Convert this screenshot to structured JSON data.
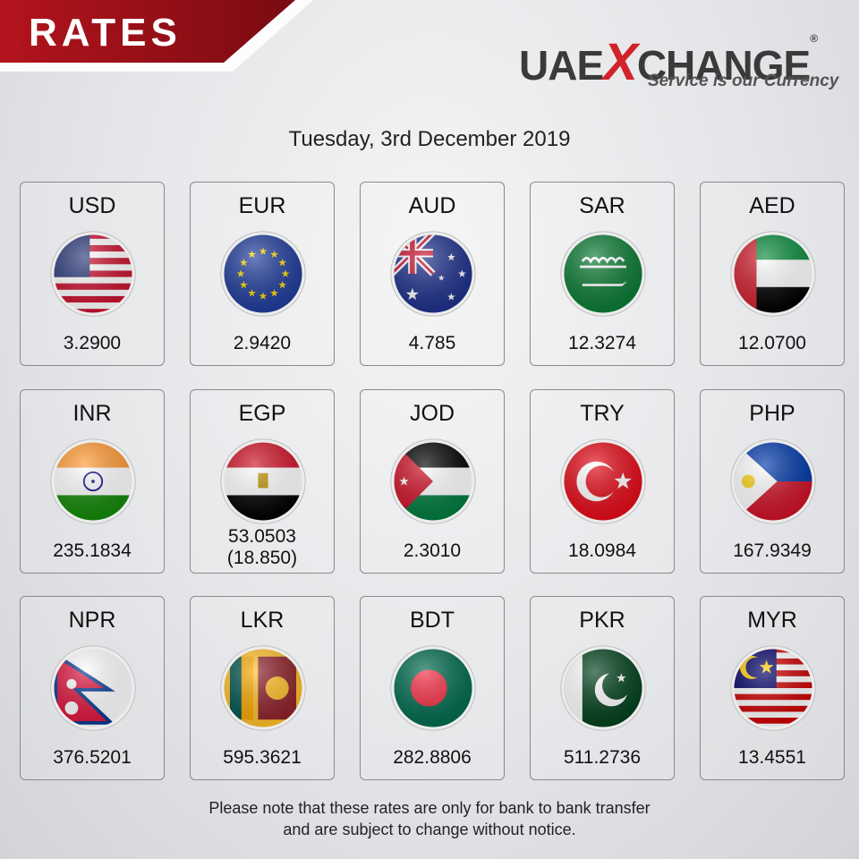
{
  "header": {
    "title": "RATES"
  },
  "brand": {
    "name_part1": "UAE",
    "name_part2": "X",
    "name_part3": "CHANGE",
    "registered": "®",
    "tagline": "Service is our Currency"
  },
  "date": "Tuesday, 3rd December 2019",
  "rates": [
    {
      "code": "USD",
      "rate": "3.2900"
    },
    {
      "code": "EUR",
      "rate": "2.9420"
    },
    {
      "code": "AUD",
      "rate": "4.785"
    },
    {
      "code": "SAR",
      "rate": "12.3274"
    },
    {
      "code": "AED",
      "rate": "12.0700"
    },
    {
      "code": "INR",
      "rate": "235.1834"
    },
    {
      "code": "EGP",
      "rate": "53.0503",
      "rate_note": "(18.850)"
    },
    {
      "code": "JOD",
      "rate": "2.3010"
    },
    {
      "code": "TRY",
      "rate": "18.0984"
    },
    {
      "code": "PHP",
      "rate": "167.9349"
    },
    {
      "code": "NPR",
      "rate": "376.5201"
    },
    {
      "code": "LKR",
      "rate": "595.3621"
    },
    {
      "code": "BDT",
      "rate": "282.8806"
    },
    {
      "code": "PKR",
      "rate": "511.2736"
    },
    {
      "code": "MYR",
      "rate": "13.4551"
    }
  ],
  "footer": {
    "line1": "Please note that these rates are only for bank to bank transfer",
    "line2": "and are subject to change without notice."
  }
}
